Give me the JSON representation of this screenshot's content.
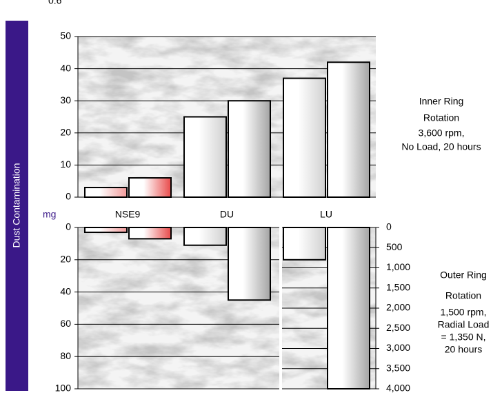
{
  "corner_text": "0.6",
  "y_axis_title": "Dust Contamination",
  "unit": "mg",
  "chart_data": [
    {
      "type": "bar",
      "categories": [
        "NSE9",
        "DU",
        "LU"
      ],
      "series": [
        {
          "colors": [
            "#f29a9a",
            "#d0d0d0",
            "#d0d0d0"
          ],
          "values": [
            3,
            25,
            37
          ]
        },
        {
          "colors": [
            "#e84a4a",
            "#a4a4a4",
            "#a4a4a4"
          ],
          "values": [
            6,
            30,
            42
          ]
        }
      ],
      "ylim": [
        0,
        50
      ],
      "yticks": [
        0,
        10,
        20,
        30,
        40,
        50
      ],
      "grid": true,
      "annotation": [
        "Inner Ring",
        "Rotation",
        "3,600 rpm,",
        "No Load, 20 hours"
      ]
    },
    {
      "type": "bar",
      "categories": [
        "NSE9",
        "DU",
        "LU"
      ],
      "series": [
        {
          "colors": [
            "#f29a9a",
            "#d0d0d0",
            "#d0d0d0"
          ],
          "values": [
            3,
            11,
            null
          ]
        },
        {
          "colors": [
            "#e84a4a",
            "#a4a4a4",
            "#a4a4a4"
          ],
          "values": [
            7,
            45,
            null
          ]
        },
        {
          "colors": [
            "#d0d0d0",
            "#d0d0d0",
            "#d0d0d0"
          ],
          "values": [
            null,
            null,
            800
          ],
          "axis": "y2"
        },
        {
          "colors": [
            "#a4a4a4",
            "#a4a4a4",
            "#a4a4a4"
          ],
          "values": [
            null,
            null,
            4000
          ],
          "axis": "y2"
        }
      ],
      "ylim": [
        0,
        100
      ],
      "yticks": [
        0,
        20,
        40,
        60,
        80,
        100
      ],
      "inverted": true,
      "grid": true,
      "y2lim": [
        0,
        4000
      ],
      "y2ticks": [
        0,
        500,
        {
          "value": 1000,
          "label": "1,000"
        },
        {
          "value": 1500,
          "label": "1,500"
        },
        {
          "value": 2000,
          "label": "2,000"
        },
        {
          "value": 2500,
          "label": "2,500"
        },
        {
          "value": 3000,
          "label": "3,000"
        },
        {
          "value": 3500,
          "label": "3,500"
        },
        {
          "value": 4000,
          "label": "4,000"
        }
      ],
      "annotation": [
        "Outer Ring",
        "Rotation",
        "1,500 rpm,",
        "Radial Load",
        "= 1,350 N,",
        "20 hours"
      ]
    }
  ]
}
